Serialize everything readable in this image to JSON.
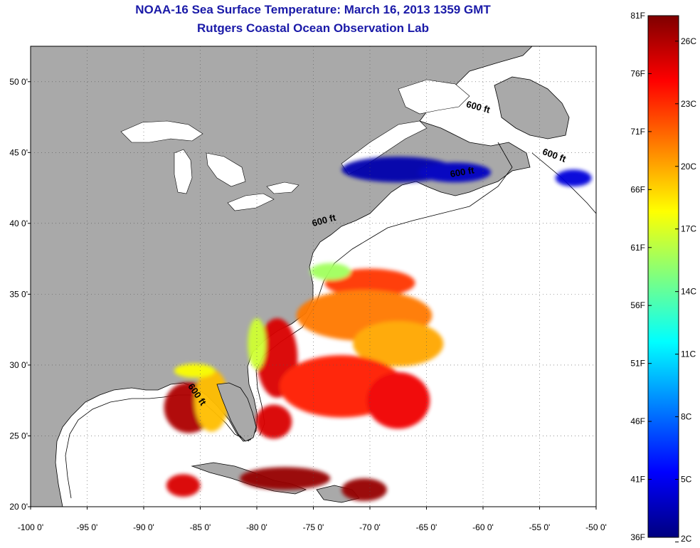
{
  "title": {
    "line1": "NOAA-16 Sea Surface Temperature:  March 16, 2013 1359 GMT",
    "line2": "Rutgers Coastal Ocean Observation Lab"
  },
  "map": {
    "lon_range": [
      -100,
      -50
    ],
    "lat_range": [
      20,
      52.5
    ],
    "lon_ticks": [
      {
        "value": -100,
        "label": "-100 0'"
      },
      {
        "value": -95,
        "label": "-95 0'"
      },
      {
        "value": -90,
        "label": "-90 0'"
      },
      {
        "value": -85,
        "label": "-85 0'"
      },
      {
        "value": -80,
        "label": "-80 0'"
      },
      {
        "value": -75,
        "label": "-75 0'"
      },
      {
        "value": -70,
        "label": "-70 0'"
      },
      {
        "value": -65,
        "label": "-65 0'"
      },
      {
        "value": -60,
        "label": "-60 0'"
      },
      {
        "value": -55,
        "label": "-55 0'"
      },
      {
        "value": -50,
        "label": "-50 0'"
      }
    ],
    "lat_ticks": [
      {
        "value": 20,
        "label": "20 0'"
      },
      {
        "value": 25,
        "label": "25 0'"
      },
      {
        "value": 30,
        "label": "30 0'"
      },
      {
        "value": 35,
        "label": "35 0'"
      },
      {
        "value": 40,
        "label": "40 0'"
      },
      {
        "value": 45,
        "label": "45 0'"
      },
      {
        "value": 50,
        "label": "50 0'"
      }
    ],
    "grid": "dotted",
    "land_color": "#a9a9a9",
    "ocean_color": "#ffffff",
    "contour_labels": [
      {
        "text": "600 ft",
        "lon": -60.5,
        "lat": 48.0,
        "angle": 15
      },
      {
        "text": "600 ft",
        "lon": -53.8,
        "lat": 44.6,
        "angle": 20
      },
      {
        "text": "600 ft",
        "lon": -61.8,
        "lat": 43.4,
        "angle": -10
      },
      {
        "text": "600 ft",
        "lon": -74.0,
        "lat": 40.0,
        "angle": -15
      },
      {
        "text": "600 ft",
        "lon": -85.5,
        "lat": 27.8,
        "angle": 55
      }
    ]
  },
  "colorbar": {
    "f_labels": [
      "81F",
      "76F",
      "71F",
      "66F",
      "61F",
      "56F",
      "51F",
      "46F",
      "41F",
      "36F"
    ],
    "c_labels": [
      "26C",
      "23C",
      "20C",
      "17C",
      "14C",
      "11C",
      "8C",
      "5C",
      "2C"
    ],
    "f_range": [
      36,
      81
    ],
    "colors": [
      "#00007f",
      "#0000ff",
      "#007fff",
      "#00ffff",
      "#7fff7f",
      "#ffff00",
      "#ff7f00",
      "#ff0000",
      "#7f0000"
    ]
  },
  "sst_patches": [
    {
      "lon": -67.5,
      "lat": 43.8,
      "rx": 5.0,
      "ry": 0.9,
      "temp_f": 38
    },
    {
      "lon": -62.5,
      "lat": 43.6,
      "rx": 3.2,
      "ry": 0.7,
      "temp_f": 39
    },
    {
      "lon": -52.0,
      "lat": 43.2,
      "rx": 1.6,
      "ry": 0.6,
      "temp_f": 40
    },
    {
      "lon": -70.0,
      "lat": 35.8,
      "rx": 4.0,
      "ry": 1.0,
      "temp_f": 73
    },
    {
      "lon": -73.5,
      "lat": 36.6,
      "rx": 1.8,
      "ry": 0.6,
      "temp_f": 60
    },
    {
      "lon": -70.5,
      "lat": 33.5,
      "rx": 6.0,
      "ry": 1.8,
      "temp_f": 70
    },
    {
      "lon": -67.5,
      "lat": 31.5,
      "rx": 4.0,
      "ry": 1.6,
      "temp_f": 68
    },
    {
      "lon": -78.2,
      "lat": 30.5,
      "rx": 1.8,
      "ry": 2.8,
      "temp_f": 77
    },
    {
      "lon": -80.0,
      "lat": 31.5,
      "rx": 0.8,
      "ry": 1.8,
      "temp_f": 62
    },
    {
      "lon": -72.5,
      "lat": 28.5,
      "rx": 5.5,
      "ry": 2.2,
      "temp_f": 74
    },
    {
      "lon": -67.5,
      "lat": 27.5,
      "rx": 2.8,
      "ry": 2.0,
      "temp_f": 76
    },
    {
      "lon": -86.0,
      "lat": 27.0,
      "rx": 2.2,
      "ry": 1.8,
      "temp_f": 79
    },
    {
      "lon": -84.0,
      "lat": 27.5,
      "rx": 1.5,
      "ry": 2.2,
      "temp_f": 67
    },
    {
      "lon": -85.5,
      "lat": 29.6,
      "rx": 1.8,
      "ry": 0.5,
      "temp_f": 64
    },
    {
      "lon": -78.5,
      "lat": 26.0,
      "rx": 1.6,
      "ry": 1.2,
      "temp_f": 77
    },
    {
      "lon": -77.5,
      "lat": 22.0,
      "rx": 4.0,
      "ry": 0.8,
      "temp_f": 80
    },
    {
      "lon": -70.5,
      "lat": 21.2,
      "rx": 2.0,
      "ry": 0.8,
      "temp_f": 80
    },
    {
      "lon": -86.5,
      "lat": 21.5,
      "rx": 1.5,
      "ry": 0.8,
      "temp_f": 77
    }
  ]
}
